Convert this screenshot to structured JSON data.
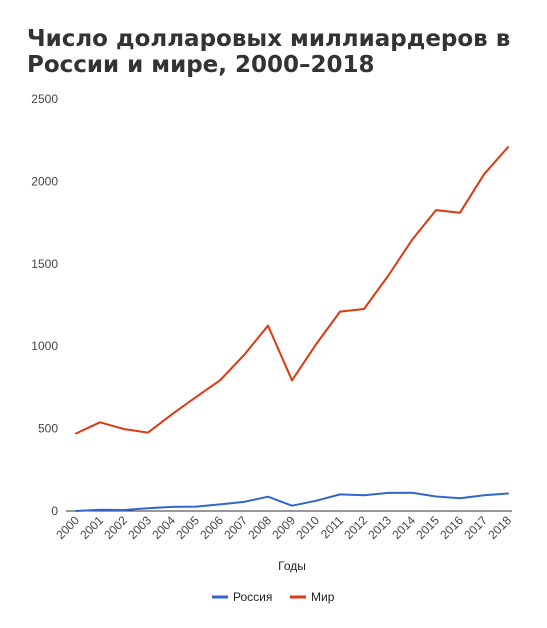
{
  "chart_data": {
    "type": "line",
    "title": "Число долларовых миллиардеров в России и мире, 2000–2018",
    "xlabel": "Годы",
    "ylabel": "",
    "ylim": [
      0,
      2500
    ],
    "yticks": [
      "0",
      "500",
      "1000",
      "1500",
      "2000",
      "2500"
    ],
    "grid": false,
    "legend_position": "bottom",
    "categories": [
      "2000",
      "2001",
      "2002",
      "2003",
      "2004",
      "2005",
      "2006",
      "2007",
      "2008",
      "2009",
      "2010",
      "2011",
      "2012",
      "2013",
      "2014",
      "2015",
      "2016",
      "2017",
      "2018"
    ],
    "series": [
      {
        "name": "Россия",
        "color": "#3366cc",
        "values": [
          0,
          8,
          6,
          17,
          25,
          27,
          40,
          55,
          87,
          32,
          62,
          101,
          96,
          110,
          111,
          88,
          77,
          96,
          106
        ]
      },
      {
        "name": "Мир",
        "color": "#dc3912",
        "values": [
          470,
          538,
          497,
          476,
          587,
          691,
          793,
          946,
          1125,
          793,
          1011,
          1210,
          1226,
          1426,
          1645,
          1826,
          1810,
          2043,
          2208
        ]
      }
    ]
  }
}
